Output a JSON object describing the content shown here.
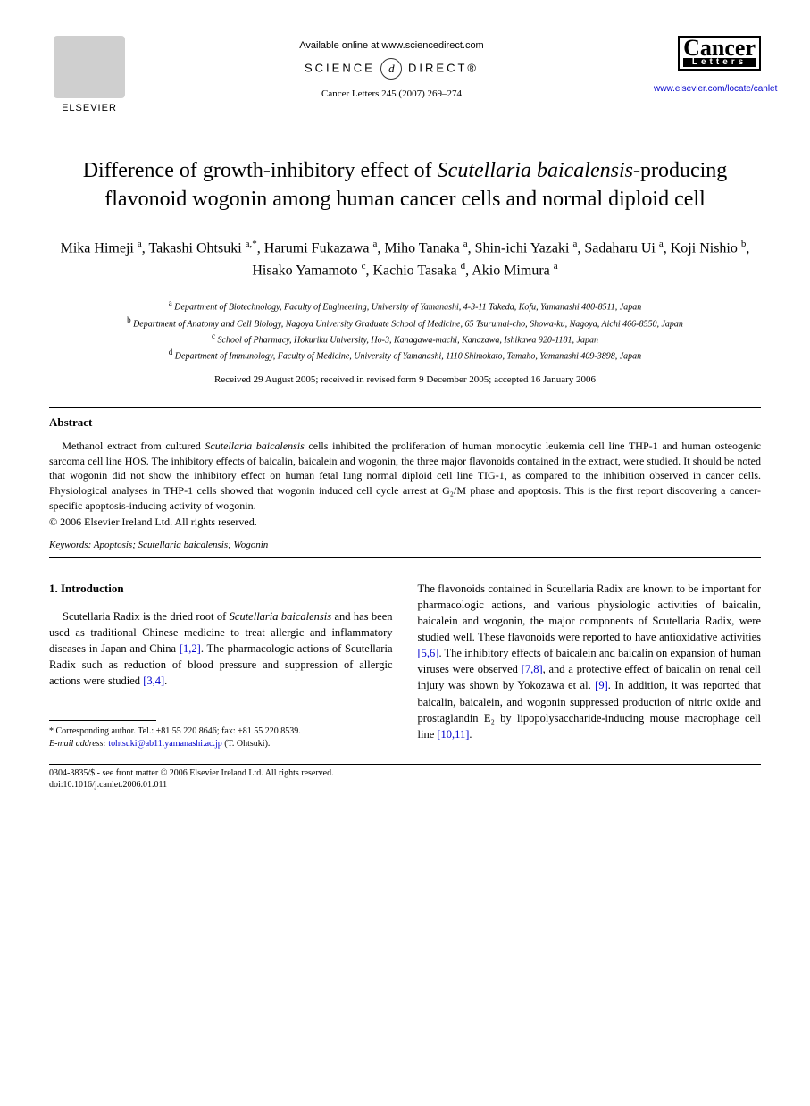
{
  "header": {
    "publisher_name": "ELSEVIER",
    "available_online": "Available online at www.sciencedirect.com",
    "science_direct_left": "SCIENCE",
    "science_direct_right": "DIRECT®",
    "journal_reference": "Cancer Letters 245 (2007) 269–274",
    "journal_logo_main": "Cancer",
    "journal_logo_sub": "Letters",
    "journal_url": "www.elsevier.com/locate/canlet"
  },
  "title": {
    "pre": "Difference of growth-inhibitory effect of ",
    "italic": "Scutellaria baicalensis",
    "post": "-producing flavonoid wogonin among human cancer cells and normal diploid cell"
  },
  "authors_html": "Mika Himeji <sup>a</sup>, Takashi Ohtsuki <sup>a,*</sup>, Harumi Fukazawa <sup>a</sup>, Miho Tanaka <sup>a</sup>, Shin-ichi Yazaki <sup>a</sup>, Sadaharu Ui <sup>a</sup>, Koji Nishio <sup>b</sup>, Hisako Yamamoto <sup>c</sup>, Kachio Tasaka <sup>d</sup>, Akio Mimura <sup>a</sup>",
  "affiliations": [
    {
      "sup": "a",
      "text": "Department of Biotechnology, Faculty of Engineering, University of Yamanashi, 4-3-11 Takeda, Kofu, Yamanashi 400-8511, Japan"
    },
    {
      "sup": "b",
      "text": "Department of Anatomy and Cell Biology, Nagoya University Graduate School of Medicine, 65 Tsurumai-cho, Showa-ku, Nagoya, Aichi 466-8550, Japan"
    },
    {
      "sup": "c",
      "text": "School of Pharmacy, Hokuriku University, Ho-3, Kanagawa-machi, Kanazawa, Ishikawa 920-1181, Japan"
    },
    {
      "sup": "d",
      "text": "Department of Immunology, Faculty of Medicine, University of Yamanashi, 1110 Shimokato, Tamaho, Yamanashi 409-3898, Japan"
    }
  ],
  "dates": "Received 29 August 2005; received in revised form 9 December 2005; accepted 16 January 2006",
  "abstract": {
    "heading": "Abstract",
    "text_pre": "Methanol extract from cultured ",
    "text_italic": "Scutellaria baicalensis",
    "text_post": " cells inhibited the proliferation of human monocytic leukemia cell line THP-1 and human osteogenic sarcoma cell line HOS. The inhibitory effects of baicalin, baicalein and wogonin, the three major flavonoids contained in the extract, were studied. It should be noted that wogonin did not show the inhibitory effect on human fetal lung normal diploid cell line TIG-1, as compared to the inhibition observed in cancer cells. Physiological analyses in THP-1 cells showed that wogonin induced cell cycle arrest at G₂/M phase and apoptosis. This is the first report discovering a cancer-specific apoptosis-inducing activity of wogonin.",
    "copyright": "© 2006 Elsevier Ireland Ltd. All rights reserved."
  },
  "keywords": {
    "label": "Keywords:",
    "text": " Apoptosis; Scutellaria baicalensis; Wogonin"
  },
  "body": {
    "section_heading": "1. Introduction",
    "col1_p1_pre": "Scutellaria Radix is the dried root of ",
    "col1_p1_italic": "Scutellaria baicalensis",
    "col1_p1_post": " and has been used as traditional Chinese medicine to treat allergic and inflammatory diseases in Japan and China ",
    "col1_ref1": "[1,2]",
    "col1_p1_post2": ". The pharmacologic actions of Scutellaria Radix such as reduction of blood pressure and suppression of allergic actions were studied ",
    "col1_ref2": "[3,4]",
    "col1_p1_post3": ".",
    "col2_p1": "The flavonoids contained in Scutellaria Radix are known to be important for pharmacologic actions, and various physiologic activities of baicalin, baicalein and wogonin, the major components of Scutellaria Radix, were studied well. These flavonoids were reported to have antioxidative activities ",
    "col2_ref1": "[5,6]",
    "col2_p1b": ". The inhibitory effects of baicalein and baicalin on expansion of human viruses were observed ",
    "col2_ref2": "[7,8]",
    "col2_p1c": ", and a protective effect of baicalin on renal cell injury was shown by Yokozawa et al. ",
    "col2_ref3": "[9]",
    "col2_p1d": ". In addition, it was reported that baicalin, baicalein, and wogonin suppressed production of nitric oxide and prostaglandin E₂ by lipopolysaccharide-inducing mouse macrophage cell line ",
    "col2_ref4": "[10,11]",
    "col2_p1e": "."
  },
  "footnote": {
    "corr": "* Corresponding author. Tel.: +81 55 220 8646; fax: +81 55 220 8539.",
    "email_label": "E-mail address:",
    "email": "tohtsuki@ab11.yamanashi.ac.jp",
    "email_person": " (T. Ohtsuki)."
  },
  "footer": {
    "line1": "0304-3835/$ - see front matter © 2006 Elsevier Ireland Ltd. All rights reserved.",
    "line2": "doi:10.1016/j.canlet.2006.01.011"
  },
  "colors": {
    "link": "#0000cc",
    "text": "#000000",
    "background": "#ffffff"
  }
}
